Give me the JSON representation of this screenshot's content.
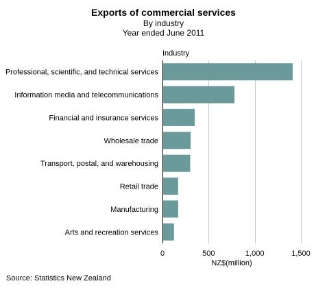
{
  "chart_data": {
    "type": "bar",
    "orientation": "horizontal",
    "title": "Exports of commercial services",
    "subtitle_lines": [
      "By industry",
      "Year ended June 2011"
    ],
    "ylabel": "Industry",
    "xlabel": "NZ$(million)",
    "categories": [
      "Professional, scientific, and technical services",
      "Information media and telecommunications",
      "Financial and insurance services",
      "Wholesale trade",
      "Transport, postal, and warehousing",
      "Retail trade",
      "Manufacturing",
      "Arts and recreation services"
    ],
    "values": [
      1410,
      780,
      350,
      305,
      300,
      170,
      170,
      125
    ],
    "xlim": [
      0,
      1500
    ],
    "xticks": [
      0,
      500,
      1000,
      1500
    ],
    "xtick_labels": [
      "0",
      "500",
      "1,000",
      "1,500"
    ],
    "grid": true,
    "bar_color": "#6a9a9a",
    "grid_color": "#c8c8c8"
  },
  "source": "Source: Statistics New Zealand"
}
